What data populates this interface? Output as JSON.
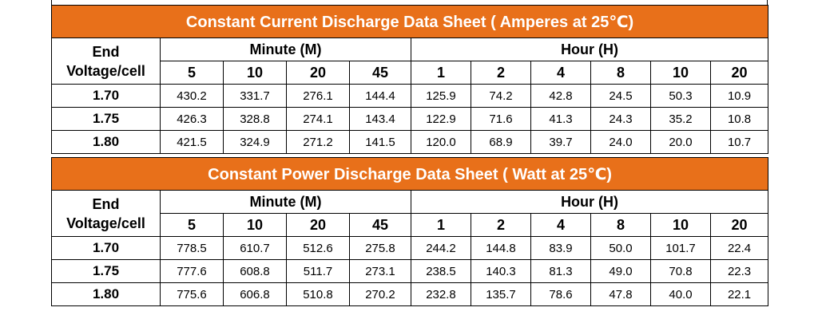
{
  "current": {
    "title": "Constant Current Discharge Data Sheet ( Amperes at 25℃)",
    "end_label_1": "End",
    "end_label_2": "Voltage/cell",
    "minute_group": "Minute (M)",
    "hour_group": "Hour (H)",
    "columns": [
      "5",
      "10",
      "20",
      "45",
      "1",
      "2",
      "4",
      "8",
      "10",
      "20"
    ],
    "rows": [
      {
        "label": "1.70",
        "values": [
          "430.2",
          "331.7",
          "276.1",
          "144.4",
          "125.9",
          "74.2",
          "42.8",
          "24.5",
          "50.3",
          "10.9"
        ]
      },
      {
        "label": "1.75",
        "values": [
          "426.3",
          "328.8",
          "274.1",
          "143.4",
          "122.9",
          "71.6",
          "41.3",
          "24.3",
          "35.2",
          "10.8"
        ]
      },
      {
        "label": "1.80",
        "values": [
          "421.5",
          "324.9",
          "271.2",
          "141.5",
          "120.0",
          "68.9",
          "39.7",
          "24.0",
          "20.0",
          "10.7"
        ]
      }
    ]
  },
  "power": {
    "title": "Constant Power Discharge Data Sheet ( Watt at 25℃)",
    "end_label_1": "End",
    "end_label_2": "Voltage/cell",
    "minute_group": "Minute (M)",
    "hour_group": "Hour (H)",
    "columns": [
      "5",
      "10",
      "20",
      "45",
      "1",
      "2",
      "4",
      "8",
      "10",
      "20"
    ],
    "rows": [
      {
        "label": "1.70",
        "values": [
          "778.5",
          "610.7",
          "512.6",
          "275.8",
          "244.2",
          "144.8",
          "83.9",
          "50.0",
          "101.7",
          "22.4"
        ]
      },
      {
        "label": "1.75",
        "values": [
          "777.6",
          "608.8",
          "511.7",
          "273.1",
          "238.5",
          "140.3",
          "81.3",
          "49.0",
          "70.8",
          "22.3"
        ]
      },
      {
        "label": "1.80",
        "values": [
          "775.6",
          "606.8",
          "510.8",
          "270.2",
          "232.8",
          "135.7",
          "78.6",
          "47.8",
          "40.0",
          "22.1"
        ]
      }
    ]
  },
  "colors": {
    "header_bg": "#e8701a",
    "header_text": "#ffffff",
    "border": "#000000"
  }
}
